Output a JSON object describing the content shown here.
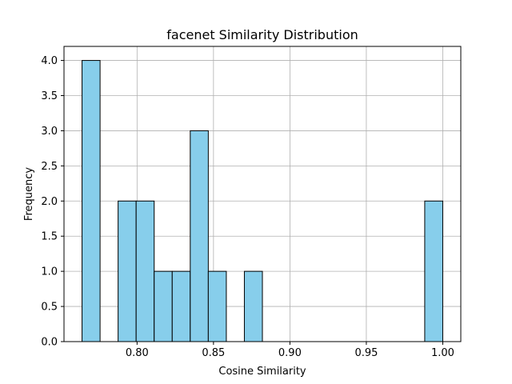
{
  "chart_data": {
    "type": "bar",
    "title": "facenet Similarity Distribution",
    "xlabel": "Cosine Similarity",
    "ylabel": "Frequency",
    "bin_width": 0.0118,
    "bins": [
      {
        "x0": 0.764,
        "x1": 0.7758,
        "count": 4
      },
      {
        "x0": 0.7876,
        "x1": 0.7994,
        "count": 2
      },
      {
        "x0": 0.7994,
        "x1": 0.8112,
        "count": 2
      },
      {
        "x0": 0.8112,
        "x1": 0.823,
        "count": 1
      },
      {
        "x0": 0.823,
        "x1": 0.8348,
        "count": 1
      },
      {
        "x0": 0.8348,
        "x1": 0.8466,
        "count": 3
      },
      {
        "x0": 0.8466,
        "x1": 0.8584,
        "count": 1
      },
      {
        "x0": 0.8702,
        "x1": 0.882,
        "count": 1
      },
      {
        "x0": 0.9882,
        "x1": 1.0,
        "count": 2
      }
    ],
    "xlim": [
      0.7522,
      1.0118
    ],
    "ylim": [
      0,
      4.2
    ],
    "xticks": [
      0.8,
      0.85,
      0.9,
      0.95,
      1.0
    ],
    "xtick_labels": [
      "0.80",
      "0.85",
      "0.90",
      "0.95",
      "1.00"
    ],
    "yticks": [
      0,
      0.5,
      1.0,
      1.5,
      2.0,
      2.5,
      3.0,
      3.5,
      4.0
    ],
    "ytick_labels": [
      "0.0",
      "0.5",
      "1.0",
      "1.5",
      "2.0",
      "2.5",
      "3.0",
      "3.5",
      "4.0"
    ],
    "grid": true,
    "bar_color": "#87ceeb",
    "edge_color": "#000000",
    "grid_color": "#b0b0b0"
  }
}
